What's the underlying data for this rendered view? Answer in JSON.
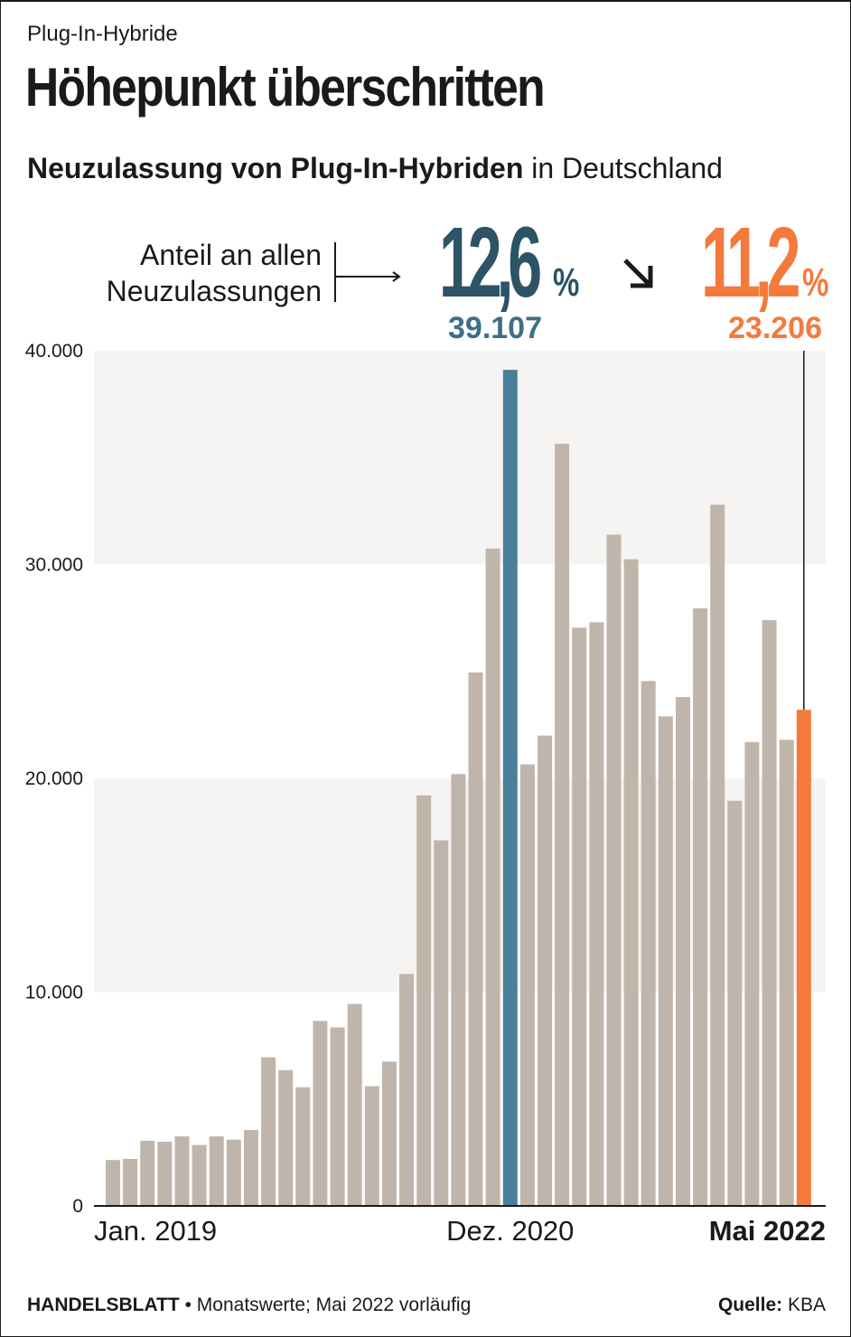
{
  "kicker": "Plug-In-Hybride",
  "headline": "Höhepunkt überschritten",
  "subtitle": {
    "bold": "Neuzulassung von Plug-In-Hybriden",
    "regular": " in Deutschland"
  },
  "share": {
    "label_line1": "Anteil an allen",
    "label_line2": "Neuzulassungen",
    "peak_value": "12,6",
    "peak_abs": "39.107",
    "latest_value": "11,2",
    "latest_abs": "23.206",
    "pct_sign": "%"
  },
  "colors": {
    "bar_default": "#c0b5aa",
    "bar_peak": "#4a7f9a",
    "bar_latest": "#f47a3c",
    "band": "#f6f4f2",
    "peak_text": "#2c5366",
    "latest_text": "#f47a3c"
  },
  "icons": {
    "label_arrow": "arrow-right-icon",
    "trend": "arrow-down-right-icon"
  },
  "chart_data": {
    "type": "bar",
    "title": "Neuzulassung von Plug-In-Hybriden in Deutschland",
    "xlabel": "",
    "ylabel": "",
    "ylim": [
      0,
      40000
    ],
    "yticks": [
      0,
      10000,
      20000,
      30000,
      40000
    ],
    "ytick_labels": [
      "0",
      "10.000",
      "20.000",
      "30.000",
      "40.000"
    ],
    "grid": "alternating horizontal bands",
    "categories": [
      "2019-01",
      "2019-02",
      "2019-03",
      "2019-04",
      "2019-05",
      "2019-06",
      "2019-07",
      "2019-08",
      "2019-09",
      "2019-10",
      "2019-11",
      "2019-12",
      "2020-01",
      "2020-02",
      "2020-03",
      "2020-04",
      "2020-05",
      "2020-06",
      "2020-07",
      "2020-08",
      "2020-09",
      "2020-10",
      "2020-11",
      "2020-12",
      "2021-01",
      "2021-02",
      "2021-03",
      "2021-04",
      "2021-05",
      "2021-06",
      "2021-07",
      "2021-08",
      "2021-09",
      "2021-10",
      "2021-11",
      "2021-12",
      "2022-01",
      "2022-02",
      "2022-03",
      "2022-04",
      "2022-05"
    ],
    "values": [
      2150,
      2200,
      3050,
      3000,
      3250,
      2850,
      3250,
      3100,
      3550,
      6950,
      6350,
      5550,
      8650,
      8350,
      9450,
      5600,
      6750,
      10850,
      19200,
      17100,
      20200,
      24950,
      30750,
      39107,
      20650,
      22000,
      35650,
      27050,
      27300,
      31400,
      30250,
      24550,
      22900,
      23800,
      27950,
      32800,
      18950,
      21700,
      27400,
      21800,
      23206
    ],
    "x_labels": [
      {
        "index": 0,
        "text": "Jan. 2019"
      },
      {
        "index": 23,
        "text": "Dez. 2020"
      },
      {
        "index": 40,
        "text": "Mai 2022"
      }
    ],
    "highlight": {
      "peak_index": 23,
      "latest_index": 40
    }
  },
  "footer": {
    "brand": "HANDELSBLATT",
    "note": " • Monatswerte; Mai 2022 vorläufig",
    "source_label": "Quelle:",
    "source": " KBA"
  }
}
